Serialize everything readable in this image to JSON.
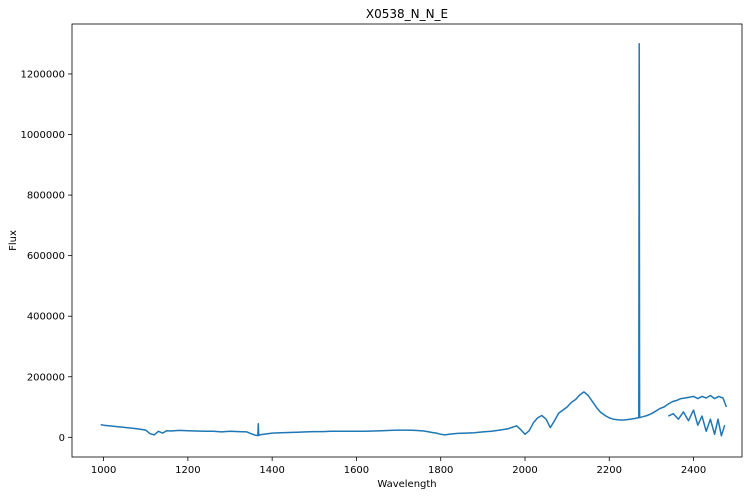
{
  "chart_data": {
    "type": "line",
    "title": "X0538_N_N_E",
    "xlabel": "Wavelength",
    "ylabel": "Flux",
    "xlim": [
      925,
      2515
    ],
    "ylim": [
      -65000,
      1365000
    ],
    "xticks": [
      1000,
      1200,
      1400,
      1600,
      1800,
      2000,
      2200,
      2400
    ],
    "yticks": [
      0,
      200000,
      400000,
      600000,
      800000,
      1000000,
      1200000
    ],
    "xtick_labels": [
      "1000",
      "1200",
      "1400",
      "1600",
      "1800",
      "2000",
      "2200",
      "2400"
    ],
    "ytick_labels": [
      "0",
      "200000",
      "400000",
      "600000",
      "800000",
      "1000000",
      "1200000"
    ],
    "grid": false,
    "series": [
      {
        "color": "#1f77b4",
        "x": [
          993,
          1000,
          1020,
          1040,
          1060,
          1080,
          1100,
          1110,
          1120,
          1130,
          1140,
          1150,
          1160,
          1180,
          1200,
          1220,
          1240,
          1260,
          1280,
          1300,
          1320,
          1340,
          1350,
          1360,
          1366,
          1367,
          1368,
          1370,
          1380,
          1400,
          1420,
          1440,
          1460,
          1480,
          1500,
          1520,
          1540,
          1560,
          1580,
          1600,
          1620,
          1640,
          1660,
          1680,
          1700,
          1720,
          1740,
          1760,
          1780,
          1790,
          1800,
          1810,
          1820,
          1840,
          1860,
          1880,
          1900,
          1920,
          1940,
          1960,
          1980,
          1990,
          2000,
          2010,
          2020,
          2030,
          2040,
          2050,
          2060,
          2070,
          2080,
          2090,
          2100,
          2110,
          2120,
          2130,
          2140,
          2150,
          2160,
          2170,
          2180,
          2190,
          2200,
          2210,
          2220,
          2230,
          2240,
          2250,
          2260,
          2270,
          2271,
          2272,
          2273,
          2274,
          2280,
          2290,
          2300,
          2310,
          2320,
          2330,
          2340,
          2350,
          2360,
          2370,
          2380,
          2390,
          2400,
          2410,
          2420,
          2430,
          2440,
          2450,
          2460,
          2470,
          2478
        ],
        "y": [
          42000,
          40000,
          37000,
          34000,
          31000,
          28000,
          24000,
          12000,
          8000,
          20000,
          14000,
          22000,
          21000,
          23000,
          22000,
          21000,
          20000,
          20000,
          18000,
          20000,
          19000,
          18000,
          12000,
          7000,
          6000,
          45000,
          6000,
          8000,
          10000,
          14000,
          15000,
          16000,
          17000,
          18000,
          19000,
          19000,
          20000,
          20000,
          20000,
          20000,
          20000,
          21000,
          22000,
          23000,
          24000,
          24000,
          23000,
          21000,
          16000,
          14000,
          10000,
          8000,
          10000,
          13000,
          14000,
          15000,
          18000,
          20000,
          24000,
          28000,
          38000,
          25000,
          10000,
          22000,
          48000,
          64000,
          72000,
          60000,
          32000,
          55000,
          80000,
          90000,
          100000,
          115000,
          125000,
          140000,
          150000,
          138000,
          118000,
          98000,
          82000,
          72000,
          64000,
          60000,
          58000,
          57000,
          58000,
          60000,
          62000,
          65000,
          1300000,
          65000,
          65000,
          66000,
          68000,
          72000,
          78000,
          86000,
          95000,
          100000,
          110000,
          118000,
          122000,
          128000,
          130000,
          132000,
          135000,
          128000,
          135000,
          130000,
          138000,
          128000,
          135000,
          130000,
          100000
        ]
      },
      {
        "color": "#1f77b4",
        "x": [
          2340,
          2352,
          2364,
          2376,
          2388,
          2400,
          2410,
          2420,
          2430,
          2440,
          2450,
          2458,
          2466,
          2474
        ],
        "y": [
          70000,
          78000,
          60000,
          84000,
          55000,
          90000,
          40000,
          70000,
          20000,
          60000,
          10000,
          60000,
          5000,
          40000
        ]
      }
    ]
  }
}
